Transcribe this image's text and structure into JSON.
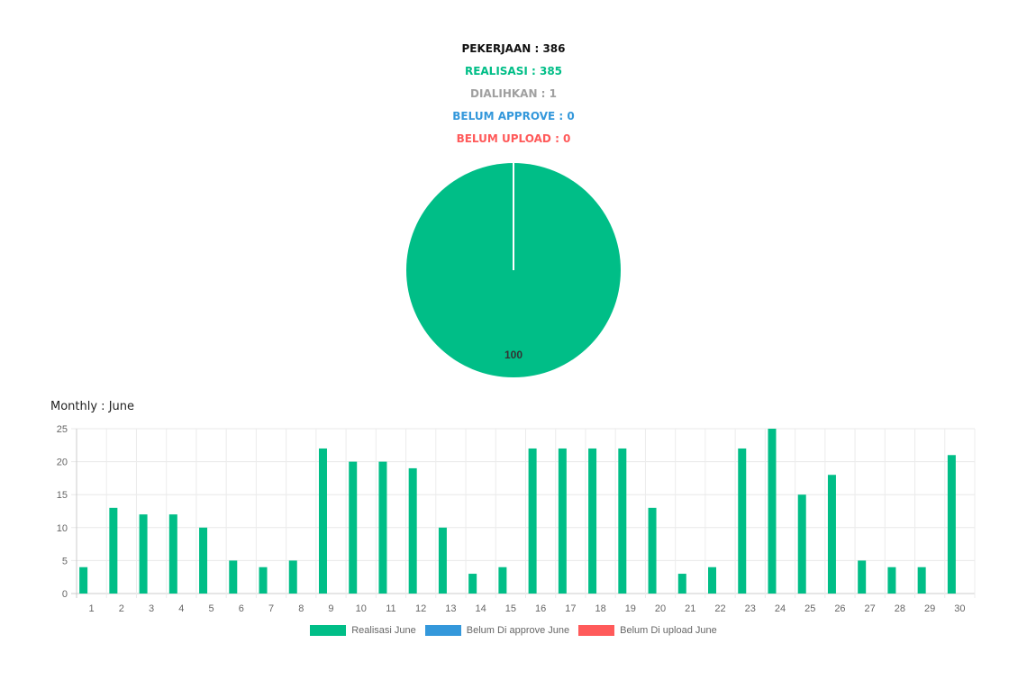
{
  "summary": {
    "pekerjaan": "PEKERJAAN : 386",
    "realisasi": "REALISASI : 385",
    "dialihkan": "DIALIHKAN : 1",
    "belum_approve": "BELUM APPROVE : 0",
    "belum_upload": "BELUM UPLOAD : 0"
  },
  "colors": {
    "pekerjaan": "#111111",
    "realisasi": "#00BE87",
    "dialihkan": "#A0A0A0",
    "belum_approve": "#3498DB",
    "belum_upload": "#FF5A5A"
  },
  "monthly_title": "Monthly : June",
  "chart_data": [
    {
      "type": "pie",
      "values": [
        100,
        0
      ],
      "colors": [
        "#00BE87",
        "#3498DB"
      ],
      "data_labels": [
        "100"
      ]
    },
    {
      "type": "bar",
      "categories": [
        "1",
        "2",
        "3",
        "4",
        "5",
        "6",
        "7",
        "8",
        "9",
        "10",
        "11",
        "12",
        "13",
        "14",
        "15",
        "16",
        "17",
        "18",
        "19",
        "20",
        "21",
        "22",
        "23",
        "24",
        "25",
        "26",
        "27",
        "28",
        "29",
        "30"
      ],
      "series": [
        {
          "name": "Realisasi June",
          "color": "#00BE87",
          "values": [
            4,
            13,
            12,
            12,
            10,
            5,
            4,
            5,
            22,
            20,
            20,
            19,
            10,
            3,
            4,
            22,
            22,
            22,
            22,
            13,
            3,
            4,
            22,
            25,
            15,
            18,
            5,
            4,
            4,
            21
          ]
        },
        {
          "name": "Belum Di approve June",
          "color": "#3498DB",
          "values": [
            0,
            0,
            0,
            0,
            0,
            0,
            0,
            0,
            0,
            0,
            0,
            0,
            0,
            0,
            0,
            0,
            0,
            0,
            0,
            0,
            0,
            0,
            0,
            0,
            0,
            0,
            0,
            0,
            0,
            0
          ]
        },
        {
          "name": "Belum Di upload June",
          "color": "#FF5A5A",
          "values": [
            0,
            0,
            0,
            0,
            0,
            0,
            0,
            0,
            0,
            0,
            0,
            0,
            0,
            0,
            0,
            0,
            0,
            0,
            0,
            0,
            0,
            0,
            0,
            0,
            0,
            0,
            0,
            0,
            0,
            0
          ]
        }
      ],
      "yticks": [
        "0",
        "5",
        "10",
        "15",
        "20",
        "25"
      ],
      "ylim": [
        0,
        25
      ],
      "grid": true,
      "legend_position": "bottom"
    }
  ]
}
